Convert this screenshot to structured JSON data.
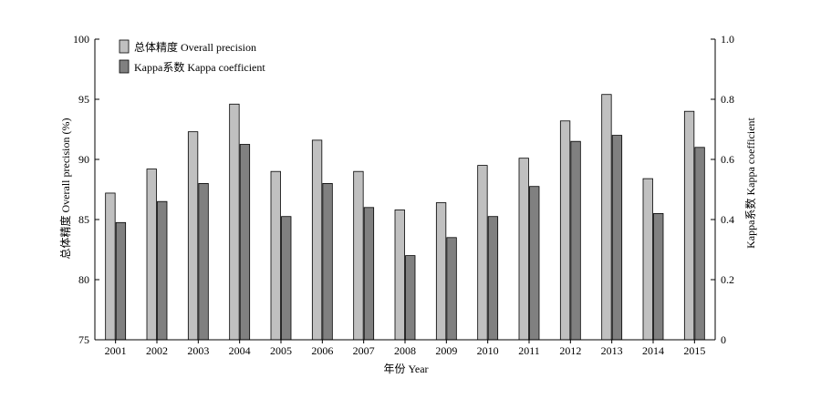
{
  "chart_data": {
    "type": "bar",
    "categories": [
      "2001",
      "2002",
      "2003",
      "2004",
      "2005",
      "2006",
      "2007",
      "2008",
      "2009",
      "2010",
      "2011",
      "2012",
      "2013",
      "2014",
      "2015"
    ],
    "series": [
      {
        "name": "总体精度 Overall precision",
        "axis": "left",
        "color": "#c0c0c0",
        "values": [
          87.2,
          89.2,
          92.3,
          94.6,
          89.0,
          91.6,
          89.0,
          85.8,
          86.4,
          89.5,
          90.1,
          93.2,
          95.4,
          88.4,
          94.0
        ]
      },
      {
        "name": "Kappa系数 Kappa coefficient",
        "axis": "right",
        "color": "#808080",
        "values": [
          0.39,
          0.46,
          0.52,
          0.65,
          0.41,
          0.52,
          0.44,
          0.28,
          0.34,
          0.41,
          0.51,
          0.66,
          0.68,
          0.42,
          0.64
        ]
      }
    ],
    "xlabel": "年份 Year",
    "ylabel": "总体精度 Overall precision (%)",
    "y2label": "Kappa系数 Kappa coefficient",
    "ylim": [
      75,
      100
    ],
    "y2lim": [
      0,
      1.0
    ],
    "yticks": [
      "75",
      "80",
      "85",
      "90",
      "95",
      "100"
    ],
    "y2ticks": [
      "0",
      "0.2",
      "0.4",
      "0.6",
      "0.8",
      "1.0"
    ],
    "legend_position": "top-left",
    "grid": false
  }
}
